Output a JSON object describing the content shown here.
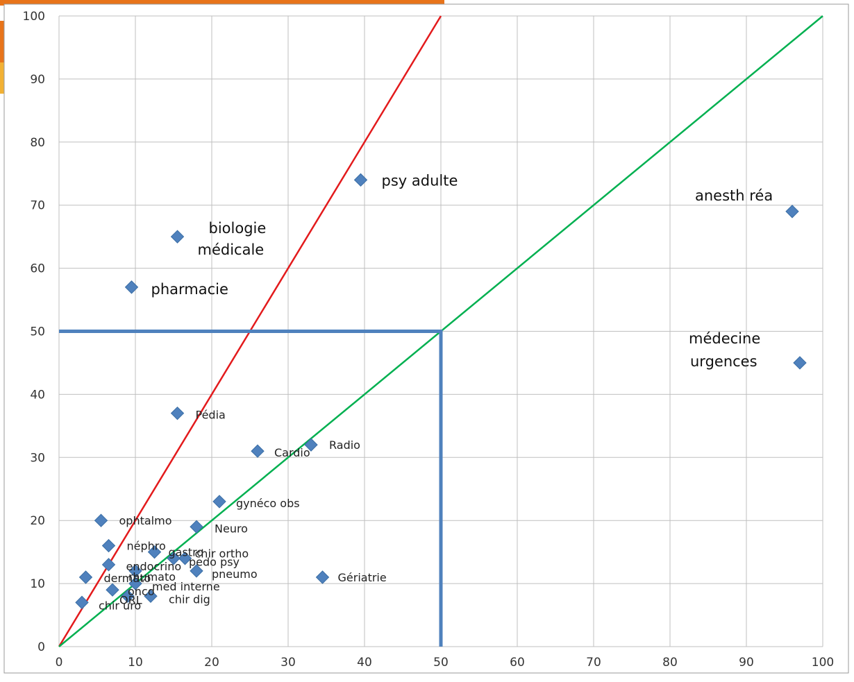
{
  "chart_data": {
    "type": "scatter",
    "xlim": [
      0,
      100
    ],
    "ylim": [
      0,
      100
    ],
    "x_ticks": [
      0,
      10,
      20,
      30,
      40,
      50,
      60,
      70,
      80,
      90,
      100
    ],
    "y_ticks": [
      0,
      10,
      20,
      30,
      40,
      50,
      60,
      70,
      80,
      90,
      100
    ],
    "grid": true,
    "marker_color": "#4f81bd",
    "points": [
      {
        "label": "psy adulte",
        "x": 39.5,
        "y": 74,
        "big": true
      },
      {
        "label": "anesth réa",
        "x": 96,
        "y": 69,
        "big": true
      },
      {
        "label": "biologie médicale",
        "x": 15.5,
        "y": 65,
        "big": true
      },
      {
        "label": "pharmacie",
        "x": 9.5,
        "y": 57,
        "big": true
      },
      {
        "label": "médecine urgences",
        "x": 97,
        "y": 45,
        "big": true
      },
      {
        "label": "Pédia",
        "x": 15.5,
        "y": 37
      },
      {
        "label": "Radio",
        "x": 33,
        "y": 32
      },
      {
        "label": "Cardio",
        "x": 26,
        "y": 31
      },
      {
        "label": "gynéco obs",
        "x": 21,
        "y": 23
      },
      {
        "label": "ophtalmo",
        "x": 5.5,
        "y": 20
      },
      {
        "label": "Neuro",
        "x": 18,
        "y": 19
      },
      {
        "label": "néphro",
        "x": 6.5,
        "y": 16
      },
      {
        "label": "gastro",
        "x": 12.5,
        "y": 15
      },
      {
        "label": "chir ortho",
        "x": 16.5,
        "y": 14
      },
      {
        "label": "pedo psy",
        "x": 15,
        "y": 14
      },
      {
        "label": "endocrino",
        "x": 6.5,
        "y": 13
      },
      {
        "label": "rhumato",
        "x": 10,
        "y": 12
      },
      {
        "label": "pneumo",
        "x": 18,
        "y": 12
      },
      {
        "label": "dermato",
        "x": 3.5,
        "y": 11
      },
      {
        "label": "Gériatrie",
        "x": 34.5,
        "y": 11
      },
      {
        "label": "med interne",
        "x": 10,
        "y": 10
      },
      {
        "label": "onco",
        "x": 7,
        "y": 9
      },
      {
        "label": "ORL",
        "x": 9,
        "y": 8
      },
      {
        "label": "chir dig",
        "x": 12,
        "y": 8
      },
      {
        "label": "chir uro",
        "x": 3,
        "y": 7
      }
    ],
    "lines": [
      {
        "color": "#e31a1c",
        "points": [
          [
            0,
            0
          ],
          [
            50,
            100
          ]
        ]
      },
      {
        "color": "#00b050",
        "points": [
          [
            0,
            0
          ],
          [
            100,
            100
          ]
        ]
      },
      {
        "color": "#4f81bd",
        "points": [
          [
            0,
            50
          ],
          [
            50,
            50
          ],
          [
            50,
            0
          ]
        ]
      }
    ]
  }
}
